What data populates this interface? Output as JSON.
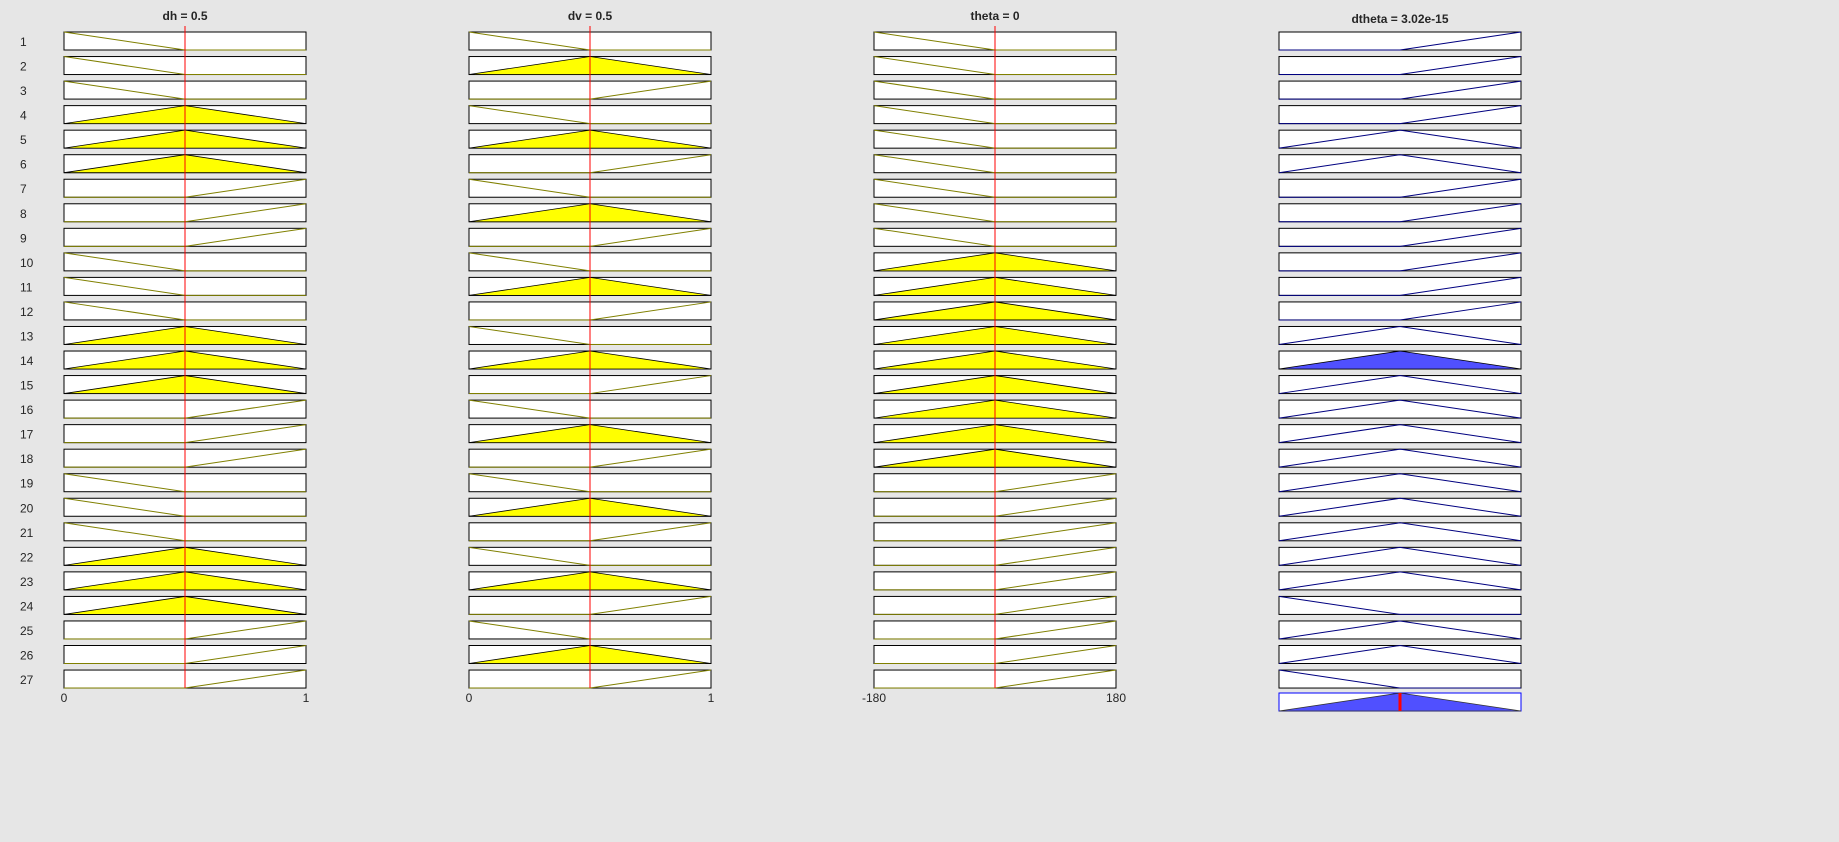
{
  "inputs": [
    {
      "title": "dh = 0.5",
      "min_label": "0",
      "max_label": "1",
      "value_fraction": 0.5
    },
    {
      "title": "dv = 0.5",
      "min_label": "0",
      "max_label": "1",
      "value_fraction": 0.5
    },
    {
      "title": "theta = 0",
      "min_label": "-180",
      "max_label": "180",
      "value_fraction": 0.5
    }
  ],
  "output": {
    "title": "dtheta = 3.02e-15",
    "value_fraction": 0.5
  },
  "rule_numbers": [
    "1",
    "2",
    "3",
    "4",
    "5",
    "6",
    "7",
    "8",
    "9",
    "10",
    "11",
    "12",
    "13",
    "14",
    "15",
    "16",
    "17",
    "18",
    "19",
    "20",
    "21",
    "22",
    "23",
    "24",
    "25",
    "26",
    "27"
  ],
  "rules": {
    "dh": [
      "L",
      "L",
      "L",
      "M",
      "M",
      "M",
      "R",
      "R",
      "R",
      "L",
      "L",
      "L",
      "M",
      "M",
      "M",
      "R",
      "R",
      "R",
      "L",
      "L",
      "L",
      "M",
      "M",
      "M",
      "R",
      "R",
      "R"
    ],
    "dv": [
      "L",
      "M",
      "R",
      "L",
      "M",
      "R",
      "L",
      "M",
      "R",
      "L",
      "M",
      "R",
      "L",
      "M",
      "R",
      "L",
      "M",
      "R",
      "L",
      "M",
      "R",
      "L",
      "M",
      "R",
      "L",
      "M",
      "R"
    ],
    "theta": [
      "L",
      "L",
      "L",
      "L",
      "L",
      "L",
      "L",
      "L",
      "L",
      "M",
      "M",
      "M",
      "M",
      "M",
      "M",
      "M",
      "M",
      "M",
      "R",
      "R",
      "R",
      "R",
      "R",
      "R",
      "R",
      "R",
      "R"
    ],
    "dtheta": [
      "R",
      "R",
      "R",
      "R",
      "M",
      "M",
      "R",
      "R",
      "R",
      "R",
      "R",
      "R",
      "M",
      "M",
      "M",
      "M",
      "M",
      "M",
      "M",
      "M",
      "M",
      "M",
      "M",
      "L",
      "M",
      "M",
      "L"
    ]
  },
  "output_fired_rule": 14,
  "colors": {
    "input_fill": "#ffff00",
    "input_line": "#808000",
    "output_fill": "#5050ff",
    "output_line": "#000080",
    "marker": "#ff0000",
    "background": "#e6e6e6"
  }
}
